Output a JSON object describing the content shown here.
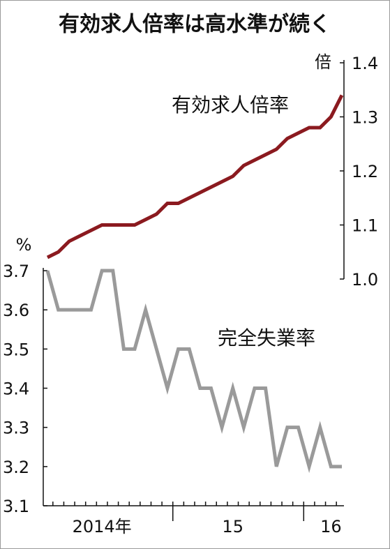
{
  "chart_data": {
    "type": "line",
    "title": "有効求人倍率は高水準が続く",
    "ylabel": "%",
    "y2label": "倍",
    "categories": [
      null,
      null,
      null,
      null,
      null,
      "2014年",
      null,
      null,
      null,
      null,
      null,
      null,
      null,
      null,
      null,
      null,
      null,
      "15",
      null,
      null,
      null,
      null,
      null,
      null,
      null,
      null,
      "16",
      null
    ],
    "series": [
      {
        "name": "有効求人倍率",
        "color": "#8b1a1f",
        "axis": "y2",
        "values": [
          1.04,
          1.05,
          1.07,
          1.08,
          1.09,
          1.1,
          1.1,
          1.1,
          1.1,
          1.11,
          1.12,
          1.14,
          1.14,
          1.15,
          1.16,
          1.17,
          1.18,
          1.19,
          1.21,
          1.22,
          1.23,
          1.24,
          1.26,
          1.27,
          1.28,
          1.28,
          1.3,
          1.34
        ]
      },
      {
        "name": "完全失業率",
        "color": "#9a9a9a",
        "values": [
          3.7,
          3.6,
          3.6,
          3.6,
          3.6,
          3.7,
          3.7,
          3.5,
          3.5,
          3.6,
          3.5,
          3.4,
          3.5,
          3.5,
          3.4,
          3.4,
          3.3,
          3.4,
          3.3,
          3.4,
          3.4,
          3.2,
          3.3,
          3.3,
          3.2,
          3.3,
          3.2,
          3.2
        ]
      }
    ],
    "ylim": [
      3.1,
      3.7
    ],
    "yticks": [
      3.1,
      3.2,
      3.3,
      3.4,
      3.5,
      3.6,
      3.7
    ],
    "y2lim": [
      1.0,
      1.4
    ],
    "y2ticks": [
      {
        "value": 1.0,
        "label": "1.0"
      },
      1.1,
      1.2,
      1.3,
      1.4
    ]
  }
}
